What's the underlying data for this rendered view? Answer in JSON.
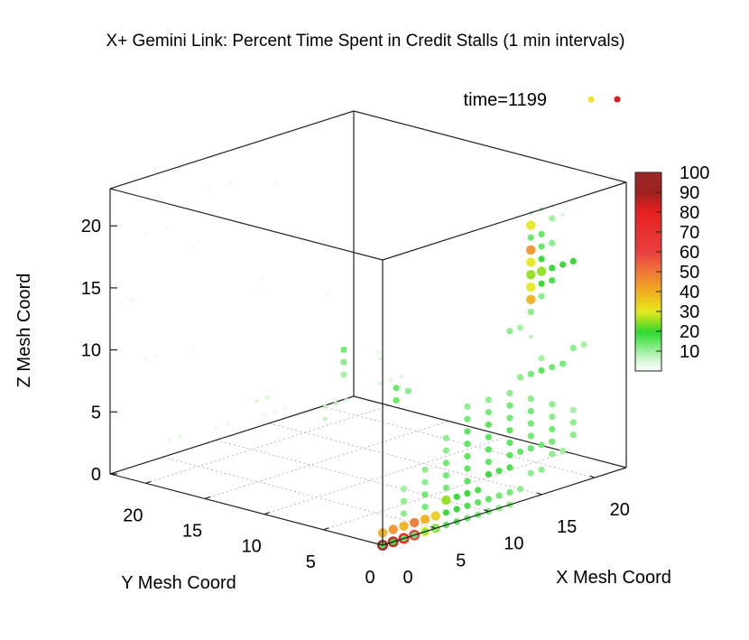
{
  "chart_data": {
    "type": "scatter",
    "title": "X+ Gemini Link: Percent Time Spent in Credit Stalls (1 min intervals)",
    "xlabel": "X Mesh Coord",
    "ylabel": "Y Mesh Coord",
    "zlabel": "Z Mesh Coord",
    "xlim": [
      0,
      23
    ],
    "ylim": [
      0,
      23
    ],
    "zlim": [
      0,
      23
    ],
    "x_ticks": [
      "0",
      "5",
      "10",
      "15",
      "20"
    ],
    "y_ticks": [
      "5",
      "10",
      "15",
      "20"
    ],
    "y_origin_label": "0",
    "z_ticks": [
      "0",
      "5",
      "10",
      "15",
      "20"
    ],
    "legend": {
      "label": "time=1199",
      "position": "top-right",
      "marker_colors": [
        "#f0e020",
        "#e81818"
      ]
    },
    "colorbar": {
      "min": 0,
      "max": 100,
      "ticks": [
        "100",
        "90",
        "80",
        "70",
        "60",
        "50",
        "40",
        "30",
        "20",
        "10"
      ],
      "tick_values": [
        100,
        90,
        80,
        70,
        60,
        50,
        40,
        30,
        20,
        10
      ],
      "stops": [
        {
          "value": 0,
          "color": "#ffffff"
        },
        {
          "value": 5,
          "color": "#d8f8d8"
        },
        {
          "value": 10,
          "color": "#a0f0a0"
        },
        {
          "value": 15,
          "color": "#60e860"
        },
        {
          "value": 20,
          "color": "#30d830"
        },
        {
          "value": 25,
          "color": "#90e020"
        },
        {
          "value": 30,
          "color": "#e8e820"
        },
        {
          "value": 40,
          "color": "#f0b020"
        },
        {
          "value": 50,
          "color": "#f07838"
        },
        {
          "value": 60,
          "color": "#e84040"
        },
        {
          "value": 70,
          "color": "#e83030"
        },
        {
          "value": 80,
          "color": "#e82020"
        },
        {
          "value": 90,
          "color": "#a02020"
        },
        {
          "value": 100,
          "color": "#982828"
        }
      ]
    },
    "grid": "xy-base",
    "note_points": "points are [x, y, z, percent]",
    "points": [
      [
        14,
        0,
        22,
        30
      ],
      [
        14,
        0,
        20,
        45
      ],
      [
        14,
        0,
        19,
        30
      ],
      [
        14,
        0,
        18,
        25
      ],
      [
        14,
        0,
        17,
        30
      ],
      [
        14,
        0,
        16,
        40
      ],
      [
        15,
        0,
        19,
        20
      ],
      [
        15,
        0,
        18,
        25
      ],
      [
        16,
        0,
        18,
        20
      ],
      [
        17,
        0,
        18,
        20
      ],
      [
        18,
        0,
        18,
        20
      ],
      [
        15,
        0,
        17,
        20
      ],
      [
        16,
        0,
        17,
        18
      ],
      [
        14,
        0,
        21,
        15
      ],
      [
        15,
        0,
        21,
        15
      ],
      [
        15,
        0,
        20,
        15
      ],
      [
        16,
        0,
        20,
        12
      ],
      [
        14,
        0,
        15,
        12
      ],
      [
        15,
        0,
        16,
        12
      ],
      [
        14,
        0,
        23,
        8
      ],
      [
        15,
        0,
        23,
        8
      ],
      [
        16,
        0,
        22,
        10
      ],
      [
        16,
        0,
        23,
        6
      ],
      [
        17,
        0,
        22,
        6
      ],
      [
        12,
        0,
        14,
        12
      ],
      [
        13,
        0,
        14,
        10
      ],
      [
        14,
        0,
        13,
        8
      ],
      [
        13,
        0,
        10,
        12
      ],
      [
        14,
        0,
        10,
        14
      ],
      [
        15,
        0,
        10,
        16
      ],
      [
        16,
        0,
        10,
        14
      ],
      [
        17,
        0,
        10,
        14
      ],
      [
        18,
        0,
        11,
        12
      ],
      [
        19,
        0,
        11,
        10
      ],
      [
        15,
        0,
        11,
        10
      ],
      [
        0,
        0,
        0,
        90
      ],
      [
        1,
        0,
        0,
        85
      ],
      [
        2,
        0,
        0,
        80
      ],
      [
        0,
        0,
        1,
        40
      ],
      [
        1,
        0,
        1,
        45
      ],
      [
        2,
        0,
        1,
        40
      ],
      [
        3,
        0,
        1,
        50
      ],
      [
        4,
        0,
        1,
        40
      ],
      [
        5,
        0,
        1,
        35
      ],
      [
        3,
        0,
        0,
        60
      ],
      [
        4,
        0,
        0,
        30
      ],
      [
        5,
        0,
        0,
        25
      ],
      [
        6,
        0,
        2,
        25
      ],
      [
        7,
        0,
        2,
        20
      ],
      [
        8,
        0,
        2,
        20
      ],
      [
        9,
        0,
        2,
        18
      ],
      [
        6,
        0,
        1,
        20
      ],
      [
        7,
        0,
        1,
        20
      ],
      [
        8,
        0,
        1,
        18
      ],
      [
        10,
        0,
        3,
        20
      ],
      [
        11,
        0,
        3,
        18
      ],
      [
        12,
        0,
        3,
        18
      ],
      [
        13,
        0,
        4,
        15
      ],
      [
        14,
        0,
        4,
        15
      ],
      [
        15,
        0,
        4,
        14
      ],
      [
        0,
        0,
        -1,
        15
      ],
      [
        1,
        0,
        -1,
        18
      ],
      [
        2,
        0,
        -1,
        15
      ],
      [
        3,
        0,
        -1,
        14
      ],
      [
        4,
        0,
        -1,
        14
      ],
      [
        5,
        0,
        -1,
        12
      ],
      [
        6,
        0,
        -1,
        10
      ],
      [
        7,
        0,
        -1,
        10
      ],
      [
        8,
        0,
        -1,
        10
      ],
      [
        6,
        0,
        0,
        16
      ],
      [
        7,
        0,
        0,
        16
      ],
      [
        8,
        0,
        0,
        14
      ],
      [
        9,
        0,
        0,
        14
      ],
      [
        10,
        0,
        0,
        14
      ],
      [
        11,
        0,
        0,
        12
      ],
      [
        12,
        0,
        0,
        12
      ],
      [
        9,
        0,
        1,
        16
      ],
      [
        10,
        0,
        1,
        16
      ],
      [
        11,
        0,
        1,
        14
      ],
      [
        12,
        0,
        1,
        14
      ],
      [
        13,
        0,
        1,
        12
      ],
      [
        14,
        0,
        2,
        12
      ],
      [
        15,
        0,
        2,
        12
      ],
      [
        16,
        0,
        3,
        12
      ],
      [
        17,
        0,
        3,
        10
      ],
      [
        8,
        0,
        3,
        16
      ],
      [
        8,
        0,
        4,
        16
      ],
      [
        8,
        0,
        5,
        16
      ],
      [
        8,
        0,
        6,
        16
      ],
      [
        8,
        0,
        7,
        16
      ],
      [
        8,
        0,
        8,
        14
      ],
      [
        8,
        0,
        9,
        12
      ],
      [
        10,
        0,
        4,
        16
      ],
      [
        10,
        0,
        5,
        16
      ],
      [
        10,
        0,
        6,
        16
      ],
      [
        10,
        0,
        7,
        16
      ],
      [
        10,
        0,
        8,
        14
      ],
      [
        10,
        0,
        9,
        12
      ],
      [
        12,
        0,
        4,
        16
      ],
      [
        12,
        0,
        5,
        16
      ],
      [
        12,
        0,
        6,
        16
      ],
      [
        12,
        0,
        7,
        14
      ],
      [
        12,
        0,
        8,
        14
      ],
      [
        12,
        0,
        9,
        12
      ],
      [
        14,
        0,
        5,
        14
      ],
      [
        14,
        0,
        6,
        14
      ],
      [
        14,
        0,
        7,
        14
      ],
      [
        14,
        0,
        8,
        12
      ],
      [
        16,
        0,
        4,
        14
      ],
      [
        16,
        0,
        5,
        14
      ],
      [
        16,
        0,
        6,
        12
      ],
      [
        16,
        0,
        7,
        12
      ],
      [
        18,
        0,
        4,
        12
      ],
      [
        18,
        0,
        5,
        12
      ],
      [
        18,
        0,
        6,
        10
      ],
      [
        6,
        0,
        3,
        14
      ],
      [
        6,
        0,
        4,
        14
      ],
      [
        6,
        0,
        5,
        14
      ],
      [
        6,
        0,
        6,
        12
      ],
      [
        6,
        0,
        7,
        12
      ],
      [
        4,
        0,
        2,
        14
      ],
      [
        4,
        0,
        3,
        14
      ],
      [
        4,
        0,
        4,
        12
      ],
      [
        4,
        0,
        5,
        12
      ],
      [
        2,
        0,
        2,
        12
      ],
      [
        2,
        0,
        3,
        12
      ],
      [
        2,
        0,
        4,
        10
      ],
      [
        8,
        6,
        8,
        15
      ],
      [
        8,
        6,
        9,
        15
      ],
      [
        8,
        5,
        9,
        12
      ],
      [
        12,
        14,
        9,
        14
      ],
      [
        12,
        14,
        8,
        12
      ],
      [
        12,
        14,
        7,
        10
      ],
      [
        8,
        12,
        5,
        8
      ],
      [
        8,
        12,
        6,
        8
      ],
      [
        9,
        12,
        6,
        8
      ],
      [
        10,
        12,
        6,
        6
      ],
      [
        6,
        16,
        6,
        6
      ],
      [
        7,
        16,
        6,
        6
      ],
      [
        2,
        2,
        12,
        6
      ],
      [
        3,
        2,
        12,
        6
      ],
      [
        4,
        2,
        12,
        6
      ],
      [
        2,
        2,
        14,
        5
      ],
      [
        3,
        3,
        14,
        5
      ],
      [
        0,
        10,
        8,
        4
      ],
      [
        1,
        10,
        8,
        4
      ],
      [
        2,
        10,
        8,
        4
      ],
      [
        0,
        14,
        6,
        4
      ],
      [
        1,
        14,
        6,
        4
      ],
      [
        0,
        18,
        4,
        4
      ],
      [
        1,
        18,
        4,
        4
      ],
      [
        0,
        20,
        10,
        3
      ],
      [
        1,
        20,
        10,
        3
      ],
      [
        0,
        22,
        14,
        3
      ],
      [
        1,
        22,
        14,
        3
      ],
      [
        0,
        16,
        12,
        3
      ],
      [
        0,
        20,
        20,
        2
      ],
      [
        2,
        20,
        20,
        2
      ],
      [
        0,
        16,
        20,
        2
      ],
      [
        2,
        12,
        18,
        2
      ],
      [
        6,
        20,
        22,
        2
      ],
      [
        8,
        20,
        22,
        2
      ],
      [
        10,
        18,
        22,
        2
      ],
      [
        4,
        14,
        16,
        2
      ],
      [
        6,
        10,
        16,
        2
      ]
    ]
  }
}
